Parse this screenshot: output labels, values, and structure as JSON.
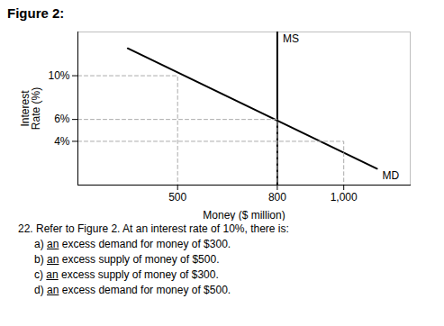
{
  "chart_data": {
    "type": "line",
    "title": "Figure 2:",
    "ylabel": "Interest\nRate (%)",
    "xlabel": "Money ($ million)",
    "xlim": [
      200,
      1200
    ],
    "ylim": [
      0,
      14
    ],
    "xticks": [
      500,
      800,
      {
        "value": 1000,
        "label": "1,000"
      }
    ],
    "yticks": [
      {
        "value": 4,
        "label": "4%"
      },
      {
        "value": 6,
        "label": "6%"
      },
      {
        "value": 10,
        "label": "10%"
      }
    ],
    "series": [
      {
        "name": "MD",
        "color": "#000000",
        "line_style": "solid",
        "x": [
          350,
          1100
        ],
        "values": [
          12.5,
          1.5
        ]
      },
      {
        "name": "MS",
        "color": "#000000",
        "line_style": "solid",
        "x": [
          800,
          800
        ],
        "values": [
          0,
          14
        ]
      },
      {
        "color": "#aaaaaa",
        "line_style": "dashed",
        "x": [
          200,
          500,
          500
        ],
        "values": [
          10,
          10,
          0
        ]
      },
      {
        "color": "#aaaaaa",
        "line_style": "dashed",
        "x": [
          200,
          800,
          800
        ],
        "values": [
          6,
          6,
          0
        ]
      },
      {
        "color": "#aaaaaa",
        "line_style": "dashed",
        "x": [
          200,
          1000,
          1000
        ],
        "values": [
          4,
          4,
          0
        ]
      }
    ],
    "caption": "22. Refer to Figure 2. At an interest rate of 10%, there is:",
    "options": [
      [
        "a) ",
        "an",
        " excess demand for money of $300."
      ],
      [
        "b) ",
        "an",
        " excess supply of money of $500."
      ],
      [
        "c) ",
        "an",
        " excess supply of money of $300."
      ],
      [
        "d) ",
        "an",
        " excess demand for money of $500."
      ]
    ]
  }
}
